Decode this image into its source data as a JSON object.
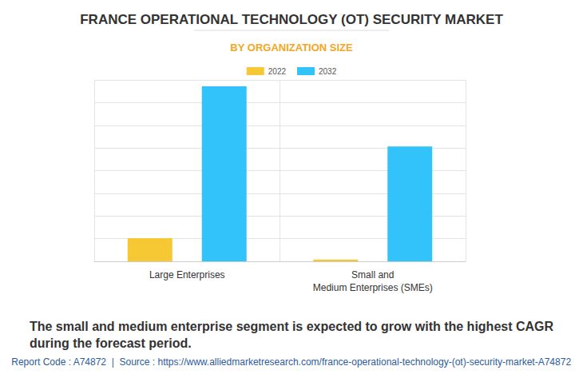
{
  "chart_data": {
    "type": "bar",
    "title": "FRANCE OPERATIONAL TECHNOLOGY (OT) SECURITY MARKET",
    "subtitle": "BY ORGANIZATION SIZE",
    "categories": [
      "Large Enterprises",
      "Small and\nMedium Enterprises (SMEs)"
    ],
    "series": [
      {
        "name": "2022",
        "color": "#f6c833",
        "values": [
          1.02,
          0.08
        ]
      },
      {
        "name": "2032",
        "color": "#33c3fb",
        "values": [
          7.72,
          5.07
        ]
      }
    ],
    "ylim": [
      0,
      8
    ],
    "yticks": [
      0,
      1,
      2,
      3,
      4,
      5,
      6,
      7,
      8
    ],
    "grid": true,
    "legend": "top",
    "tick_labels": "x",
    "annotations": [
      "The small and medium enterprise segment is expected to grow with the highest CAGR\nduring the forecast period.",
      "Report Code : A74872  |  Source : https://www.alliedmarketresearch.com/france-operational-technology-(ot)-security-market-A74872"
    ]
  }
}
